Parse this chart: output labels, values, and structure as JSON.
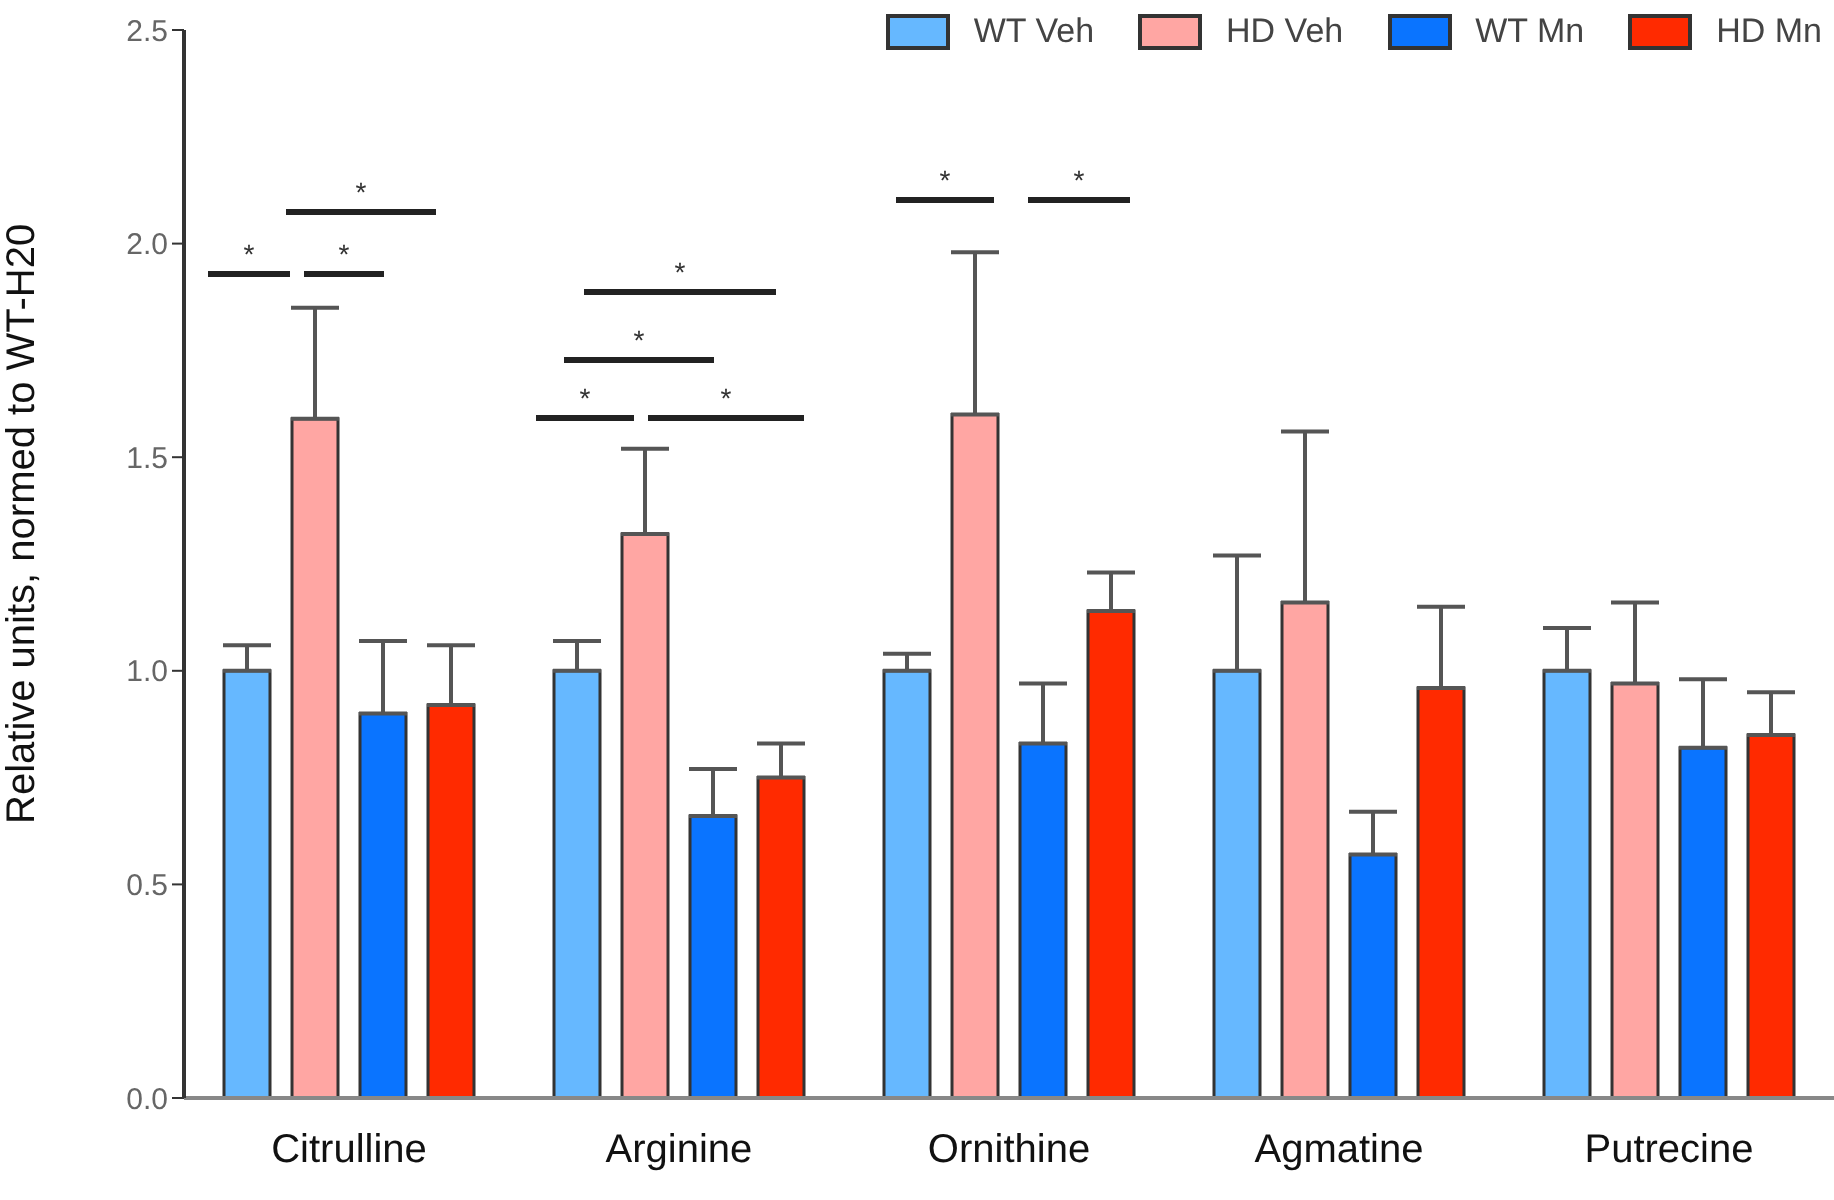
{
  "chart_data": {
    "type": "bar",
    "ylabel": "Relative units, normed to WT-H20",
    "categories": [
      "Citrulline",
      "Arginine",
      "Ornithine",
      "Agmatine",
      "Putrecine"
    ],
    "series": [
      {
        "name": "WT Veh",
        "color": "#66b8ff",
        "values": [
          1.0,
          1.0,
          1.0,
          1.0,
          1.0
        ],
        "errors": [
          [
            1.0,
            1.06
          ],
          [
            1.0,
            1.07
          ],
          [
            1.0,
            1.04
          ],
          [
            1.0,
            1.27
          ],
          [
            1.0,
            1.1
          ]
        ]
      },
      {
        "name": "HD Veh",
        "color": "#ffa6a3",
        "values": [
          1.59,
          1.32,
          1.6,
          1.16,
          0.97
        ],
        "errors": [
          [
            1.59,
            1.85
          ],
          [
            1.32,
            1.52
          ],
          [
            1.6,
            1.98
          ],
          [
            1.16,
            1.56
          ],
          [
            0.97,
            1.16
          ]
        ]
      },
      {
        "name": "WT Mn",
        "color": "#0a74ff",
        "values": [
          0.9,
          0.66,
          0.83,
          0.57,
          0.82
        ],
        "errors": [
          [
            0.9,
            1.07
          ],
          [
            0.66,
            0.77
          ],
          [
            0.83,
            0.97
          ],
          [
            0.57,
            0.67
          ],
          [
            0.82,
            0.98
          ]
        ]
      },
      {
        "name": "HD Mn",
        "color": "#ff2a00",
        "values": [
          0.92,
          0.75,
          1.14,
          0.96,
          0.85
        ],
        "errors": [
          [
            0.92,
            1.06
          ],
          [
            0.75,
            0.83
          ],
          [
            1.14,
            1.23
          ],
          [
            0.96,
            1.15
          ],
          [
            0.85,
            0.95
          ]
        ]
      }
    ],
    "ylim": [
      0,
      2.5
    ],
    "yticks": [
      {
        "value": 0,
        "label": "0.0"
      },
      {
        "value": 0.5,
        "label": "0.5"
      },
      {
        "value": 1,
        "label": "1.0"
      },
      {
        "value": 1.5,
        "label": "1.5"
      },
      {
        "value": 2,
        "label": "2.0"
      },
      {
        "value": 2.5,
        "label": "2.5"
      }
    ],
    "grid": false,
    "legend": "top right",
    "annotations": [
      "*",
      "*",
      "*",
      "*",
      "*",
      "*",
      "*",
      "*",
      "*"
    ]
  }
}
